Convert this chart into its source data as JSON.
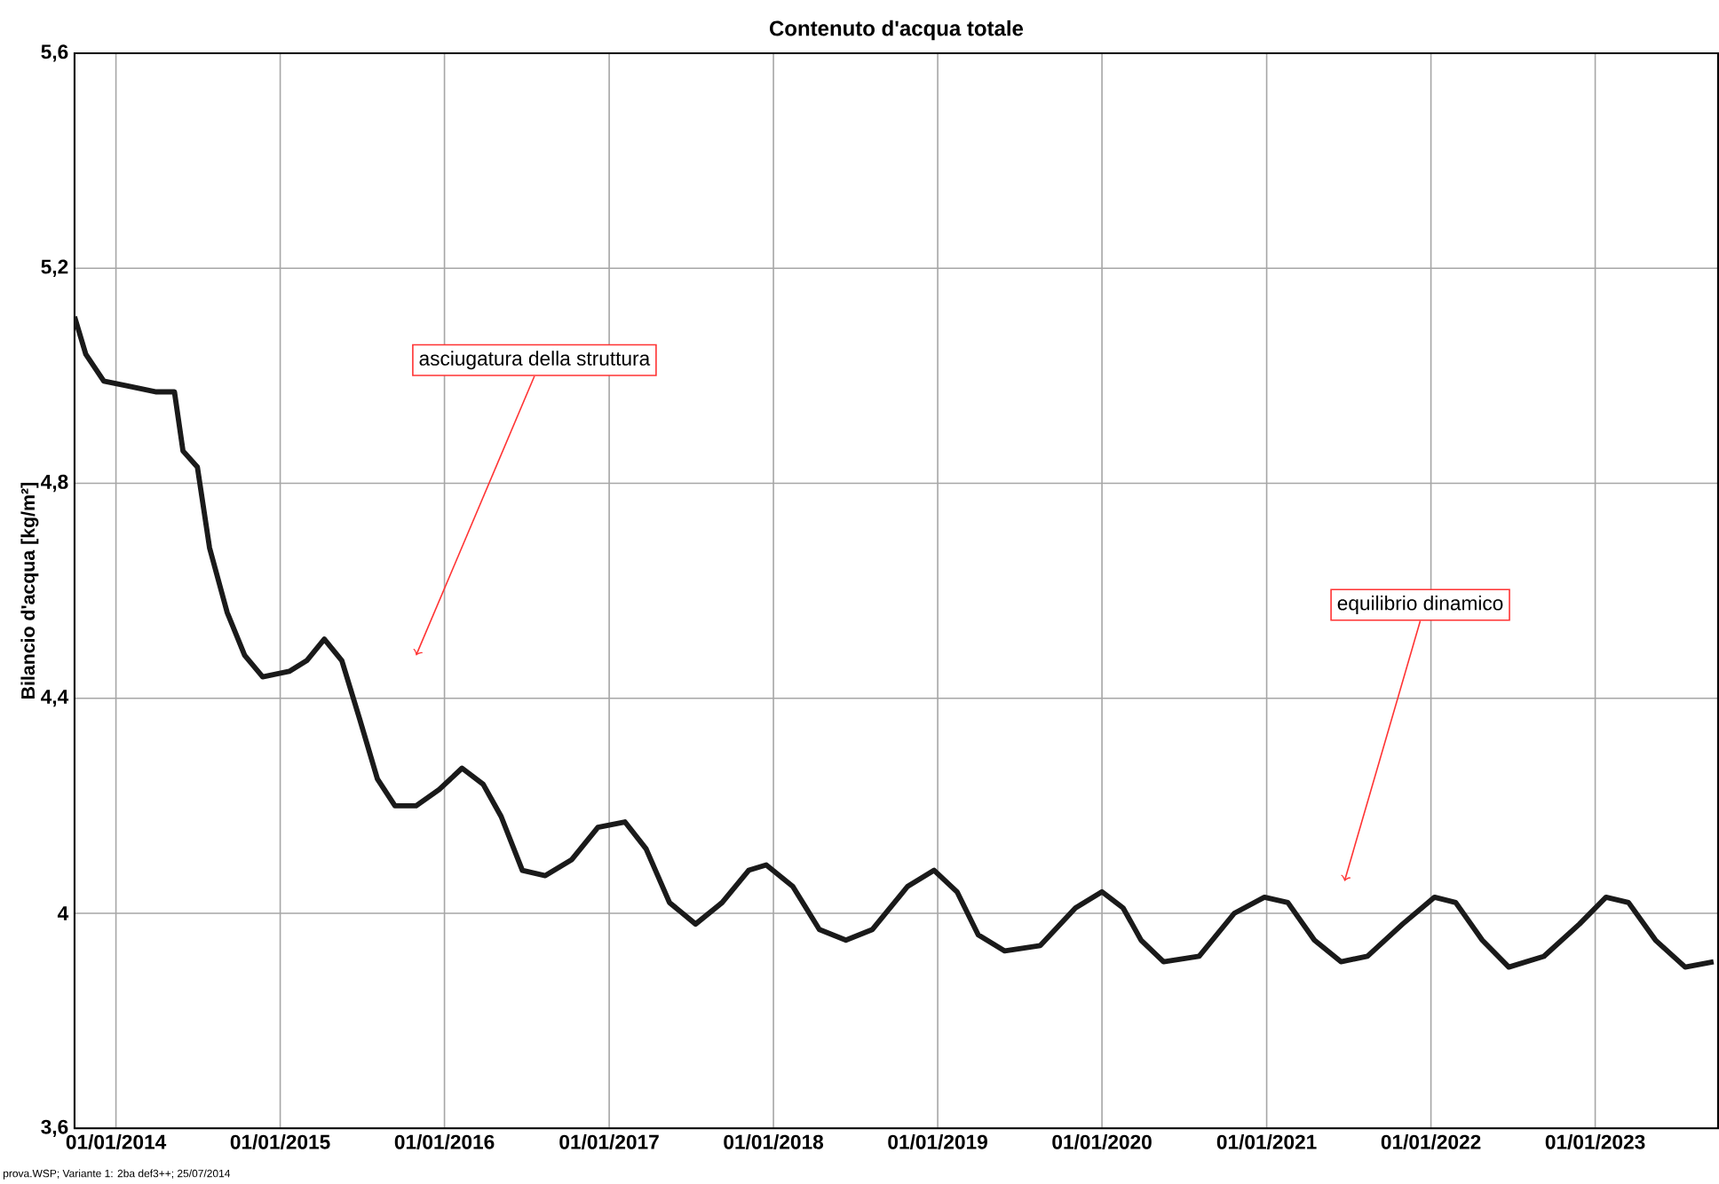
{
  "chart_data": {
    "type": "line",
    "title": "Contenuto d'acqua totale",
    "ylabel": "Bilancio d'acqua [kg/m²]",
    "xlim": [
      "2013-10-01",
      "2023-10-01"
    ],
    "ylim": [
      3.6,
      5.6
    ],
    "xticks": [
      {
        "value": "2014-01-01",
        "label": "01/01/2014"
      },
      {
        "value": "2015-01-01",
        "label": "01/01/2015"
      },
      {
        "value": "2016-01-01",
        "label": "01/01/2016"
      },
      {
        "value": "2017-01-01",
        "label": "01/01/2017"
      },
      {
        "value": "2018-01-01",
        "label": "01/01/2018"
      },
      {
        "value": "2019-01-01",
        "label": "01/01/2019"
      },
      {
        "value": "2020-01-01",
        "label": "01/01/2020"
      },
      {
        "value": "2021-01-01",
        "label": "01/01/2021"
      },
      {
        "value": "2022-01-01",
        "label": "01/01/2022"
      },
      {
        "value": "2023-01-01",
        "label": "01/01/2023"
      }
    ],
    "yticks": [
      {
        "value": 3.6,
        "label": "3,6"
      },
      4,
      {
        "value": 4.4,
        "label": "4,4"
      },
      {
        "value": 4.8,
        "label": "4,8"
      },
      {
        "value": 5.2,
        "label": "5,2"
      },
      {
        "value": 5.6,
        "label": "5,6"
      }
    ],
    "grid": true,
    "marker": "none",
    "line_style": "solid",
    "x": [
      "2013-10-01",
      "2013-10-26",
      "2013-12-05",
      "2014-02-01",
      "2014-04-01",
      "2014-05-11",
      "2014-05-30",
      "2014-07-01",
      "2014-07-28",
      "2014-09-05",
      "2014-10-14",
      "2014-11-23",
      "2015-01-21",
      "2015-03-01",
      "2015-04-09",
      "2015-05-18",
      "2015-06-27",
      "2015-08-05",
      "2015-09-13",
      "2015-10-30",
      "2015-12-20",
      "2016-02-09",
      "2016-03-27",
      "2016-05-06",
      "2016-06-22",
      "2016-08-12",
      "2016-10-10",
      "2016-12-07",
      "2017-02-05",
      "2017-03-24",
      "2017-05-15",
      "2017-07-12",
      "2017-09-09",
      "2017-11-07",
      "2017-12-16",
      "2018-02-13",
      "2018-04-13",
      "2018-06-11",
      "2018-08-09",
      "2018-10-26",
      "2018-12-24",
      "2019-02-13",
      "2019-04-01",
      "2019-05-30",
      "2019-08-17",
      "2019-11-03",
      "2020-01-01",
      "2020-02-17",
      "2020-03-28",
      "2020-05-17",
      "2020-08-04",
      "2020-10-21",
      "2020-12-27",
      "2021-02-17",
      "2021-04-17",
      "2021-06-15",
      "2021-08-13",
      "2021-10-30",
      "2022-01-09",
      "2022-02-25",
      "2022-04-25",
      "2022-06-23",
      "2022-09-09",
      "2022-11-27",
      "2023-01-25",
      "2023-03-16",
      "2023-05-15",
      "2023-07-20",
      "2023-09-21"
    ],
    "series": [
      {
        "color": "#1a1a1a",
        "values": [
          5.11,
          5.04,
          4.99,
          4.98,
          4.97,
          4.97,
          4.86,
          4.83,
          4.68,
          4.56,
          4.48,
          4.44,
          4.45,
          4.47,
          4.51,
          4.47,
          4.36,
          4.25,
          4.2,
          4.2,
          4.23,
          4.27,
          4.24,
          4.18,
          4.08,
          4.07,
          4.1,
          4.16,
          4.17,
          4.12,
          4.02,
          3.98,
          4.02,
          4.08,
          4.09,
          4.05,
          3.97,
          3.95,
          3.97,
          4.05,
          4.08,
          4.04,
          3.96,
          3.93,
          3.94,
          4.01,
          4.04,
          4.01,
          3.95,
          3.91,
          3.92,
          4.0,
          4.03,
          4.02,
          3.95,
          3.91,
          3.92,
          3.98,
          4.03,
          4.02,
          3.95,
          3.9,
          3.92,
          3.98,
          4.03,
          4.02,
          3.95,
          3.9,
          3.91
        ]
      }
    ],
    "annotations": [
      {
        "text": "asciugatura della struttura",
        "x": "2015-10-30",
        "y": 4.48
      },
      {
        "text": "equilibrio dinamico",
        "x": "2021-06-23",
        "y": 4.06
      },
      "prova.WSP; Variante 1: 2ba def3++; 25/07/2014"
    ]
  }
}
